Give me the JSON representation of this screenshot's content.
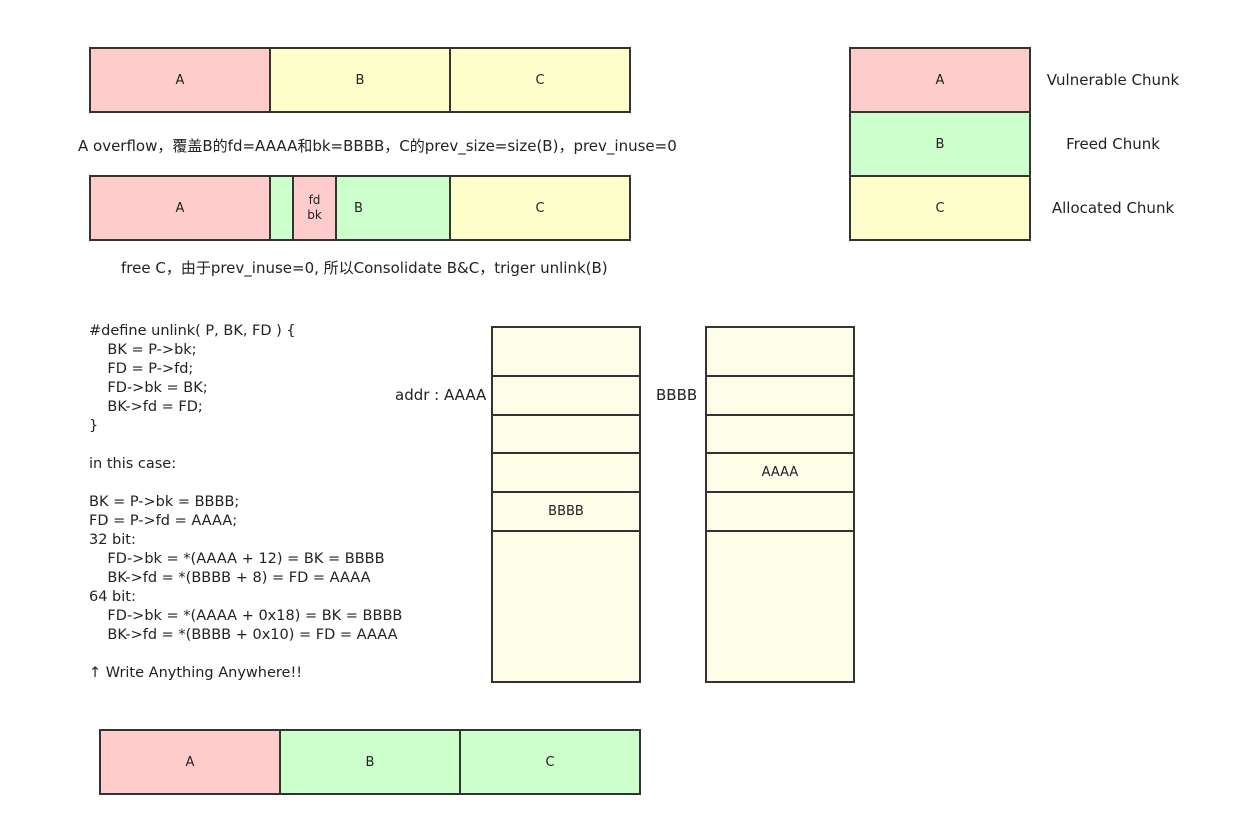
{
  "colors": {
    "vulnerable": "#ffcccc",
    "freed": "#ccffcc",
    "allocated": "#ffffcc",
    "memory": "#fdfde8",
    "border": "#333333"
  },
  "row1": {
    "a": "A",
    "b": "B",
    "c": "C"
  },
  "caption1": "A overflow，覆盖B的fd=AAAA和bk=BBBB，C的prev_size=size(B)，prev_inuse=0",
  "row2": {
    "a": "A",
    "fd": "fd",
    "bk": "bk",
    "b": "B",
    "c": "C"
  },
  "caption2": "free C，由于prev_inuse=0, 所以Consolidate B&C，triger unlink(B)",
  "legend": [
    {
      "chunk": "A",
      "label": "Vulnerable Chunk"
    },
    {
      "chunk": "B",
      "label": "Freed Chunk"
    },
    {
      "chunk": "C",
      "label": "Allocated Chunk"
    }
  ],
  "code_lines": [
    "#define unlink( P, BK, FD ) {",
    "    BK = P->bk;",
    "    FD = P->fd;",
    "    FD->bk = BK;",
    "    BK->fd = FD;",
    "}",
    "",
    "in this case:",
    "",
    "BK = P->bk = BBBB;",
    "FD = P->fd = AAAA;",
    "32 bit:",
    "    FD->bk = *(AAAA + 12) = BK = BBBB",
    "    BK->fd = *(BBBB + 8) = FD = AAAA",
    "64 bit:",
    "    FD->bk = *(AAAA + 0x18) = BK = BBBB",
    "    BK->fd = *(BBBB + 0x10) = FD = AAAA",
    "",
    "↑ Write Anything Anywhere!!"
  ],
  "memory1": {
    "label": "addr : AAAA",
    "cell_value": "BBBB"
  },
  "memory2": {
    "label": "BBBB",
    "cell_value": "AAAA"
  },
  "row3": {
    "a": "A",
    "b": "B",
    "c": "C"
  }
}
